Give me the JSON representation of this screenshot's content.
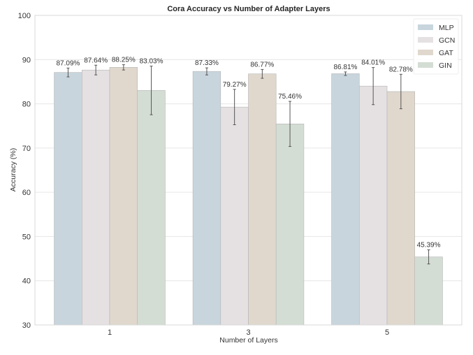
{
  "chart_data": {
    "type": "bar",
    "title": "Cora Accuracy vs Number of Adapter Layers",
    "xlabel": "Number of Layers",
    "ylabel": "Accuracy (%)",
    "ylim": [
      30,
      100
    ],
    "yticks": [
      30,
      40,
      50,
      60,
      70,
      80,
      90,
      100
    ],
    "grid": true,
    "legend_position": "upper right",
    "categories": [
      "1",
      "3",
      "5"
    ],
    "series": [
      {
        "name": "MLP",
        "color": "#c8d5dd",
        "values": [
          87.09,
          87.33,
          86.81
        ],
        "errors": [
          1.0,
          0.8,
          0.4
        ],
        "labels": [
          "87.09%",
          "87.33%",
          "86.81%"
        ]
      },
      {
        "name": "GCN",
        "color": "#e5e1e2",
        "values": [
          87.64,
          79.27,
          84.01
        ],
        "errors": [
          1.1,
          4.0,
          4.2
        ],
        "labels": [
          "87.64%",
          "79.27%",
          "84.01%"
        ]
      },
      {
        "name": "GAT",
        "color": "#e0d8cd",
        "values": [
          88.25,
          86.77,
          82.78
        ],
        "errors": [
          0.6,
          1.0,
          3.9
        ],
        "labels": [
          "88.25%",
          "86.77%",
          "82.78%"
        ]
      },
      {
        "name": "GIN",
        "color": "#d4ddd4",
        "values": [
          83.03,
          75.46,
          45.39
        ],
        "errors": [
          5.5,
          5.1,
          1.6
        ],
        "labels": [
          "83.03%",
          "75.46%",
          "45.39%"
        ]
      }
    ]
  }
}
